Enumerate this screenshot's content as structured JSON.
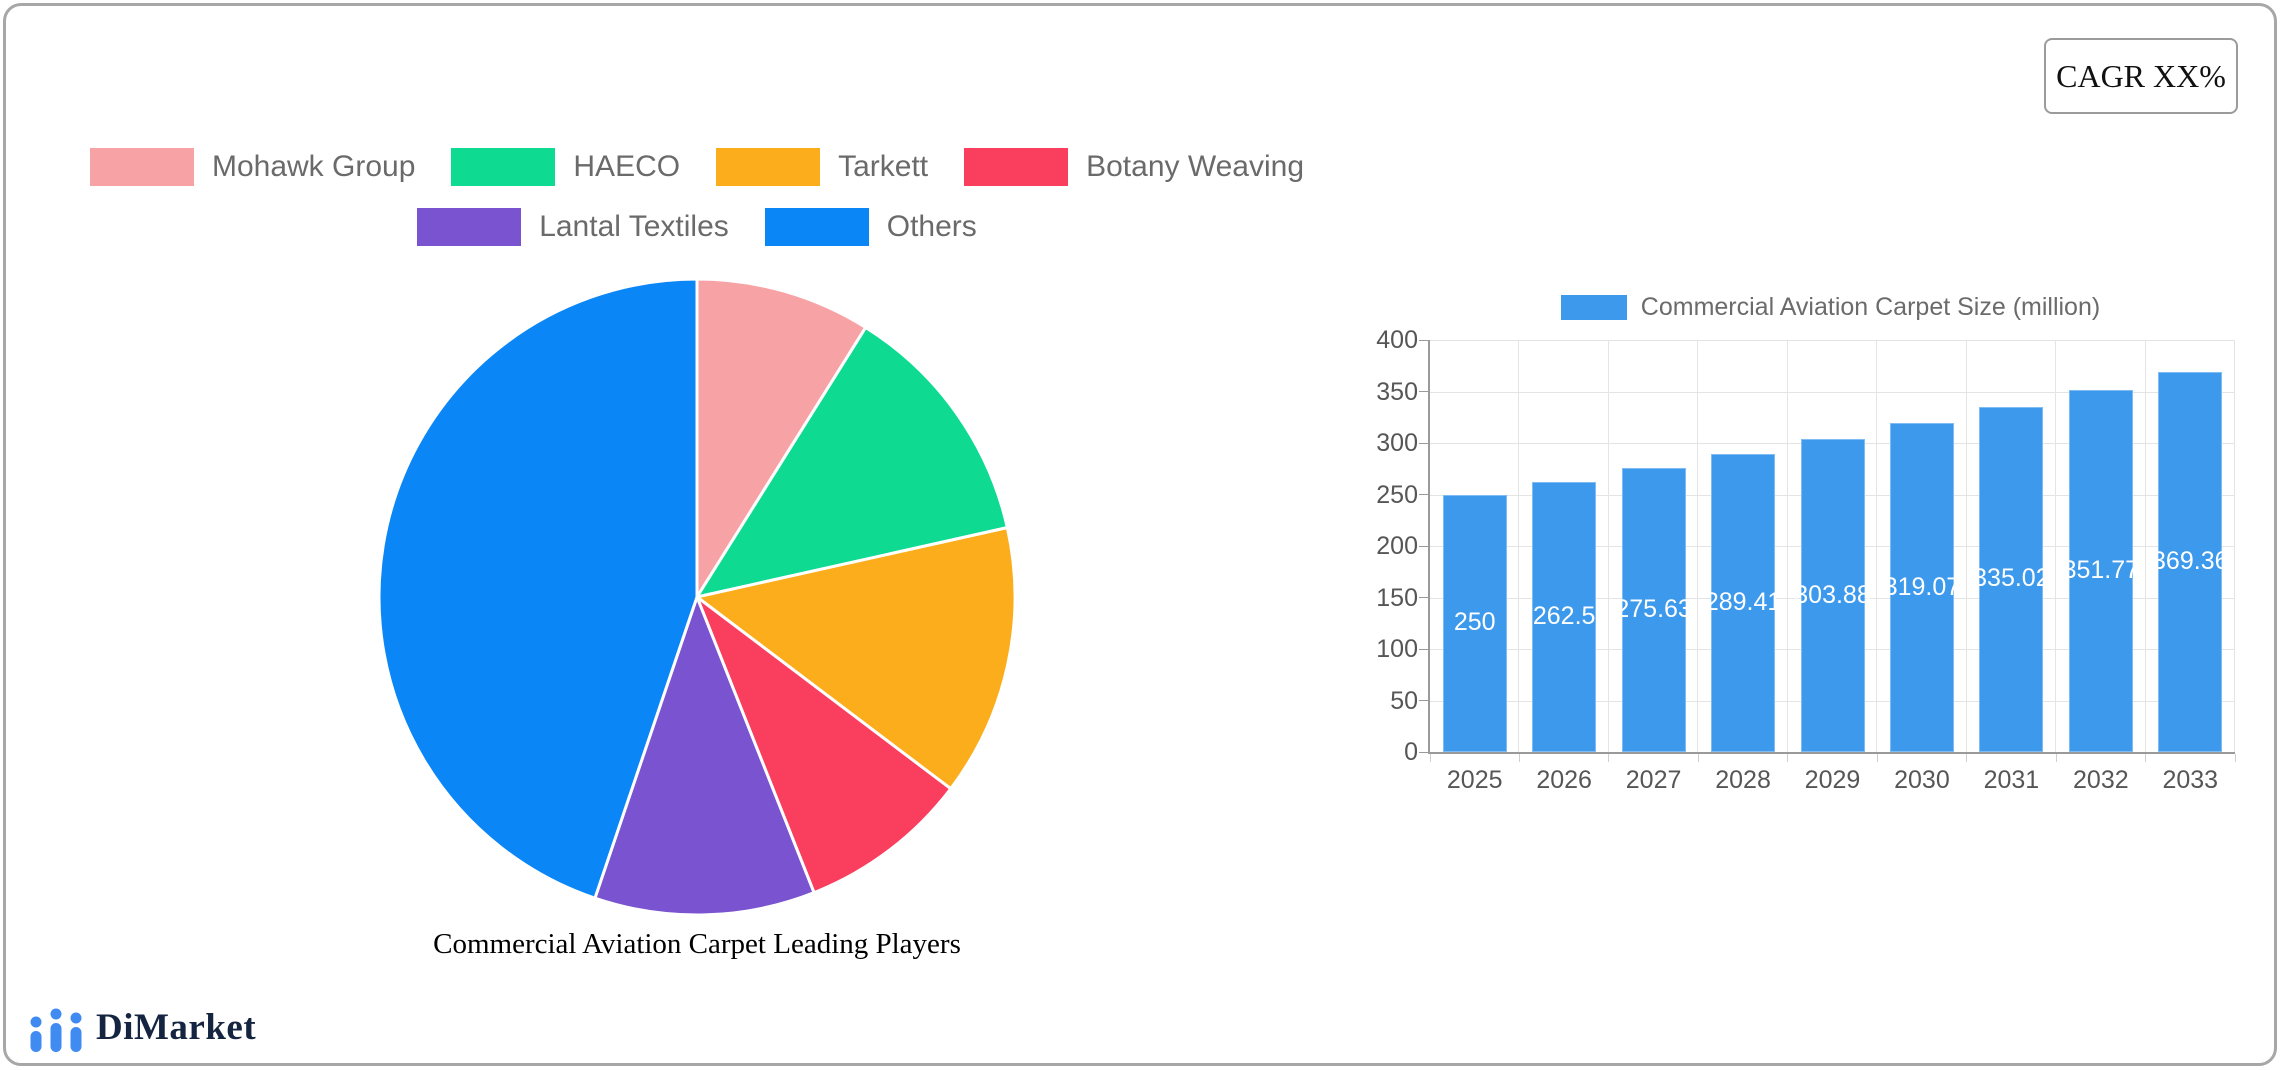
{
  "cagr_label": "CAGR XX%",
  "branding": {
    "name": "DiMarket",
    "icon": "bar-chart-logo-icon",
    "icon_color": "#3f8bf2",
    "text_color": "#152440"
  },
  "chart_data": [
    {
      "type": "pie",
      "title": "Commercial Aviation Carpet Leading Players",
      "labels": [
        "Mohawk Group",
        "HAECO",
        "Tarkett",
        "Botany Weaving",
        "Lantal Textiles",
        "Others"
      ],
      "values": [
        8.9,
        12.6,
        13.8,
        8.7,
        11.2,
        44.8
      ],
      "colors": [
        "#f7a2a5",
        "#0eda92",
        "#fbad1b",
        "#f93e5e",
        "#7a53d1",
        "#0a86f7"
      ],
      "legend_position": "top",
      "legend_text_color": "#6a6a6a",
      "slice_gap_color": "#ffffff"
    },
    {
      "type": "bar",
      "series_name": "Commercial Aviation Carpet Size (million)",
      "categories": [
        "2025",
        "2026",
        "2027",
        "2028",
        "2029",
        "2030",
        "2031",
        "2032",
        "2033"
      ],
      "values": [
        250,
        262.5,
        275.63,
        289.41,
        303.88,
        319.07,
        335.02,
        351.77,
        369.36
      ],
      "color": "#3d99ec",
      "ylim": [
        0,
        400
      ],
      "ytick_step": 50,
      "yticks": [
        0,
        50,
        100,
        150,
        200,
        250,
        300,
        350,
        400
      ],
      "grid": true,
      "legend_position": "top",
      "value_label_color": "#ffffff"
    }
  ]
}
